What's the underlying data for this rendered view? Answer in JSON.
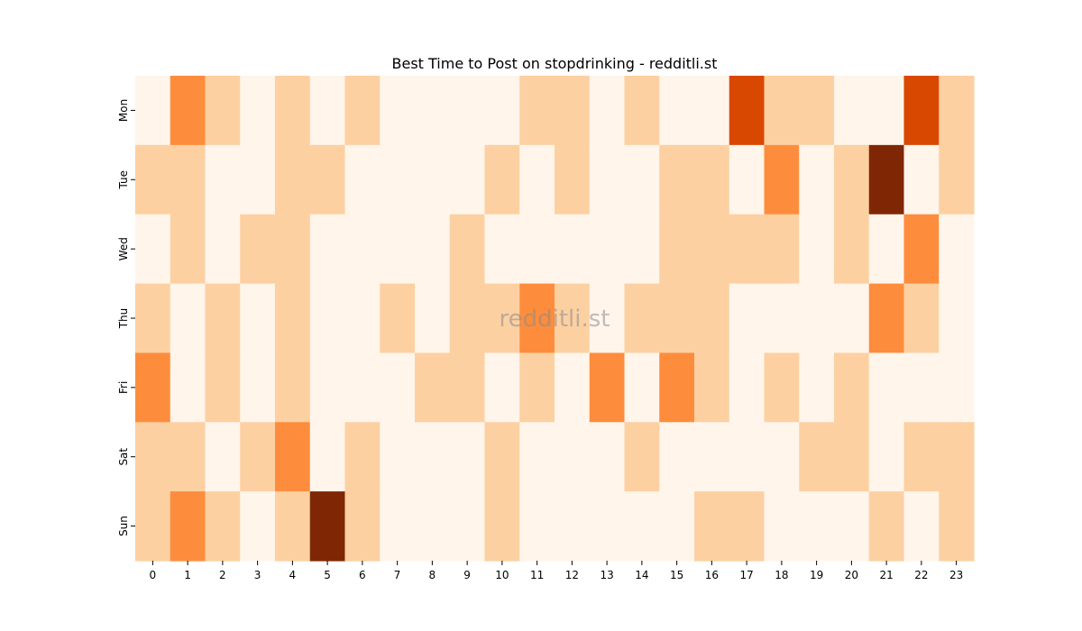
{
  "chart_data": {
    "type": "heatmap",
    "title": "Best Time to Post on stopdrinking - redditli.st",
    "watermark": "redditli.st",
    "x_categories": [
      "0",
      "1",
      "2",
      "3",
      "4",
      "5",
      "6",
      "7",
      "8",
      "9",
      "10",
      "11",
      "12",
      "13",
      "14",
      "15",
      "16",
      "17",
      "18",
      "19",
      "20",
      "21",
      "22",
      "23"
    ],
    "y_categories": [
      "Mon",
      "Tue",
      "Wed",
      "Thu",
      "Fri",
      "Sat",
      "Sun"
    ],
    "values": [
      [
        0,
        2,
        1,
        0,
        1,
        0,
        1,
        0,
        0,
        0,
        0,
        1,
        1,
        0,
        1,
        0,
        0,
        3,
        1,
        1,
        0,
        0,
        3,
        1
      ],
      [
        1,
        1,
        0,
        0,
        1,
        1,
        0,
        0,
        0,
        0,
        1,
        0,
        1,
        0,
        0,
        1,
        1,
        0,
        2,
        0,
        1,
        4,
        0,
        1
      ],
      [
        0,
        1,
        0,
        1,
        1,
        0,
        0,
        0,
        0,
        1,
        0,
        0,
        0,
        0,
        0,
        1,
        1,
        1,
        1,
        0,
        1,
        0,
        2,
        0
      ],
      [
        1,
        0,
        1,
        0,
        1,
        0,
        0,
        1,
        0,
        1,
        1,
        2,
        1,
        0,
        1,
        1,
        1,
        0,
        0,
        0,
        0,
        2,
        1,
        0
      ],
      [
        2,
        0,
        1,
        0,
        1,
        0,
        0,
        0,
        1,
        1,
        0,
        1,
        0,
        2,
        0,
        2,
        1,
        0,
        1,
        0,
        1,
        0,
        0,
        0
      ],
      [
        1,
        1,
        0,
        1,
        2,
        0,
        1,
        0,
        0,
        0,
        1,
        0,
        0,
        0,
        1,
        0,
        0,
        0,
        0,
        1,
        1,
        0,
        1,
        1
      ],
      [
        1,
        2,
        1,
        0,
        1,
        4,
        1,
        0,
        0,
        0,
        1,
        0,
        0,
        0,
        0,
        0,
        1,
        1,
        0,
        0,
        0,
        1,
        0,
        1
      ]
    ],
    "colormap": "Oranges",
    "level_colors": [
      "#fff5eb",
      "#fdd0a2",
      "#fd8d3c",
      "#d94801",
      "#7f2704"
    ],
    "vmin": 0,
    "vmax": 4,
    "grid": false,
    "legend": "none"
  }
}
